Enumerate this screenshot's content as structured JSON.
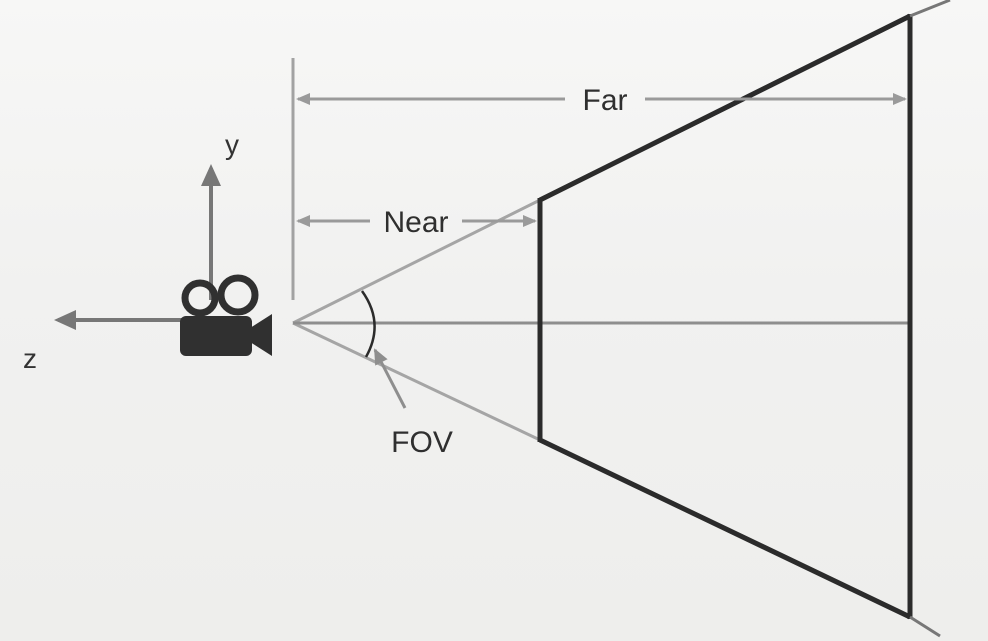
{
  "diagram": {
    "labels": {
      "far": "Far",
      "near": "Near",
      "fov": "FOV",
      "axis_y": "y",
      "axis_z": "z"
    },
    "colors": {
      "frustum_stroke": "#2b2b2b",
      "dimension_gray": "#9a9a9a",
      "axis_gray": "#777777",
      "camera_body": "#303030",
      "text": "#333333"
    },
    "icons": {
      "camera": "video-camera-icon"
    }
  }
}
